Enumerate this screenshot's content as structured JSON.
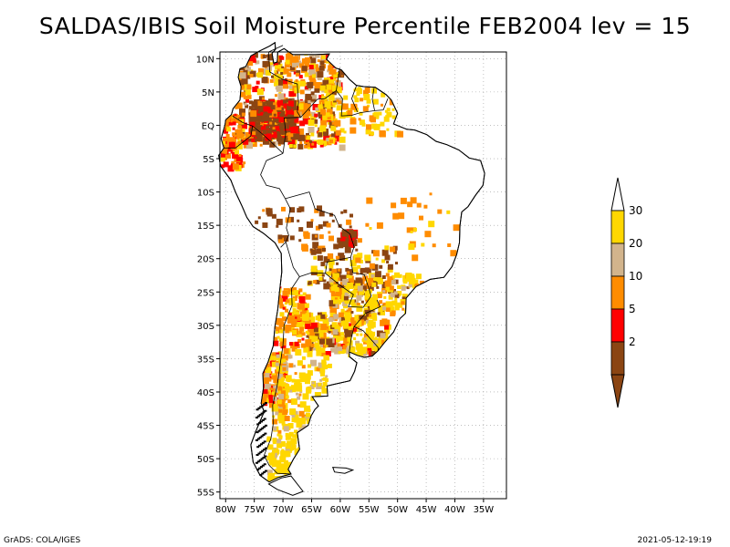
{
  "title": "SALDAS/IBIS Soil Moisture Percentile FEB2004 lev = 15",
  "footer": {
    "left": "GrADS: COLA/IGES",
    "right": "2021-05-12-19:19"
  },
  "map_data": {
    "type": "map",
    "region": "South America",
    "projection": "lat-lon",
    "lon_range": [
      -81,
      -31
    ],
    "lat_range": [
      -56,
      11
    ],
    "x_ticks": [
      {
        "value": -80,
        "label": "80W"
      },
      {
        "value": -75,
        "label": "75W"
      },
      {
        "value": -70,
        "label": "70W"
      },
      {
        "value": -65,
        "label": "65W"
      },
      {
        "value": -60,
        "label": "60W"
      },
      {
        "value": -55,
        "label": "55W"
      },
      {
        "value": -50,
        "label": "50W"
      },
      {
        "value": -45,
        "label": "45W"
      },
      {
        "value": -40,
        "label": "40W"
      },
      {
        "value": -35,
        "label": "35W"
      }
    ],
    "y_ticks": [
      {
        "value": 10,
        "label": "10N"
      },
      {
        "value": 5,
        "label": "5N"
      },
      {
        "value": 0,
        "label": "EQ"
      },
      {
        "value": -5,
        "label": "5S"
      },
      {
        "value": -10,
        "label": "10S"
      },
      {
        "value": -15,
        "label": "15S"
      },
      {
        "value": -20,
        "label": "20S"
      },
      {
        "value": -25,
        "label": "25S"
      },
      {
        "value": -30,
        "label": "30S"
      },
      {
        "value": -35,
        "label": "35S"
      },
      {
        "value": -40,
        "label": "40S"
      },
      {
        "value": -45,
        "label": "45S"
      },
      {
        "value": -50,
        "label": "50S"
      },
      {
        "value": -55,
        "label": "55S"
      }
    ],
    "grid": true,
    "colorbar": {
      "placement": "right",
      "levels": [
        {
          "label": "2",
          "color": "#8b4513"
        },
        {
          "label": "5",
          "color": "#ff0000"
        },
        {
          "label": "10",
          "color": "#ff8c00"
        },
        {
          "label": "20",
          "color": "#d2b48c"
        },
        {
          "label": "30",
          "color": "#ffd700"
        }
      ],
      "below_color": "#8b4513",
      "above_color": "#ffffff"
    },
    "colors": {
      "ocean": "#ffffff",
      "land_outline": "#000000",
      "gridline": "#999999"
    }
  }
}
